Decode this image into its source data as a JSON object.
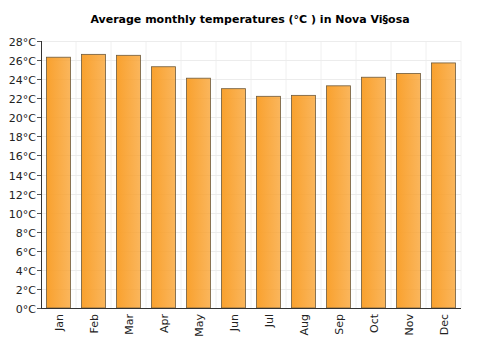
{
  "chart_data": {
    "type": "bar",
    "title": "Average monthly temperatures (°C ) in Nova Vi§osa",
    "categories": [
      "Jan",
      "Feb",
      "Mar",
      "Apr",
      "May",
      "Jun",
      "Jul",
      "Aug",
      "Sep",
      "Oct",
      "Nov",
      "Dec"
    ],
    "values": [
      26.3,
      26.6,
      26.5,
      25.3,
      24.1,
      23.0,
      22.2,
      22.3,
      23.3,
      24.2,
      24.6,
      25.7
    ],
    "color": "#f9a12e",
    "ylim": [
      0,
      28
    ],
    "yticks": [
      {
        "value": 0,
        "label": "0°C"
      },
      {
        "value": 2,
        "label": "2°C"
      },
      {
        "value": 4,
        "label": "4°C"
      },
      {
        "value": 6,
        "label": "6°C"
      },
      {
        "value": 8,
        "label": "8°C"
      },
      {
        "value": 10,
        "label": "10°C"
      },
      {
        "value": 12,
        "label": "12°C"
      },
      {
        "value": 14,
        "label": "14°C"
      },
      {
        "value": 16,
        "label": "16°C"
      },
      {
        "value": 18,
        "label": "18°C"
      },
      {
        "value": 20,
        "label": "20°C"
      },
      {
        "value": 22,
        "label": "22°C"
      },
      {
        "value": 24,
        "label": "24°C"
      },
      {
        "value": 26,
        "label": "26°C"
      },
      {
        "value": 28,
        "label": "28°C"
      }
    ],
    "grid": true
  }
}
